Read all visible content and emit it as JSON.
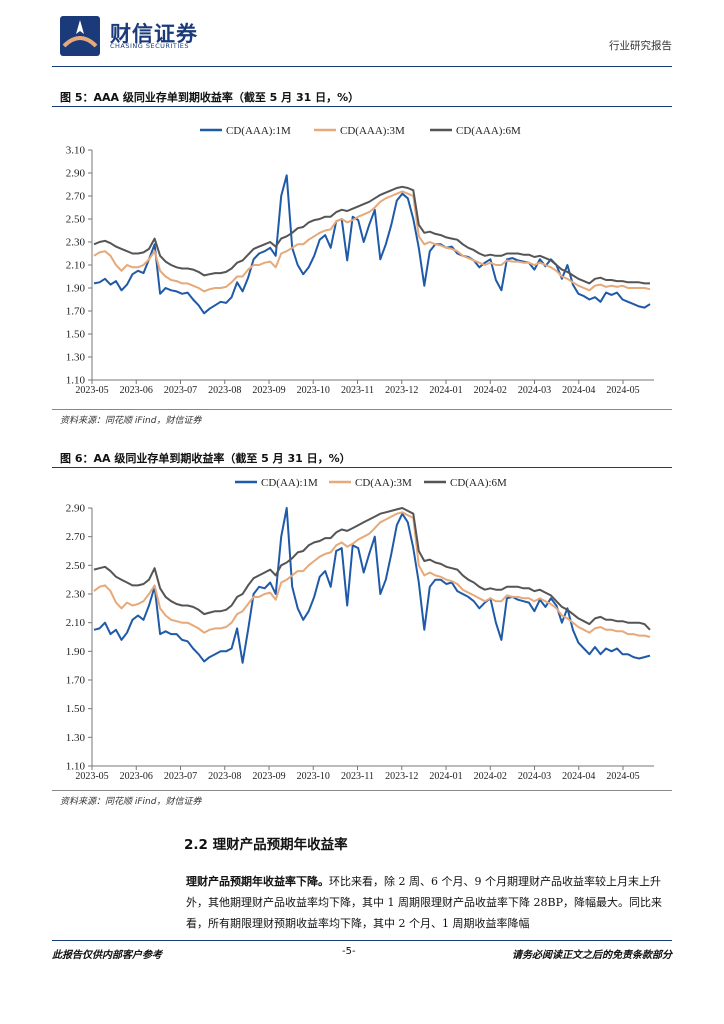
{
  "header": {
    "brand_name": "财信证券",
    "brand_en": "CHASING SECURITIES",
    "report_type": "行业研究报告"
  },
  "figure5": {
    "title": "图 5：AAA 级同业存单到期收益率（截至 5 月 31 日，%）",
    "source": "资料来源：同花顺 iFind，财信证券"
  },
  "figure6": {
    "title": "图 6：AA 级同业存单到期收益率（截至 5 月 31 日，%）",
    "source": "资料来源：同花顺 iFind，财信证券"
  },
  "section": {
    "title": "2.2 理财产品预期年收益率",
    "para_lead": "理财产品预期年收益率下降。",
    "para_body": "环比来看，除 2 周、6 个月、9 个月期理财产品收益率较上月末上升外，其他期理财产品收益率均下降，其中 1 周期限理财产品收益率下降 28BP，降幅最大。同比来看，所有期限理财预期收益率均下降，其中 2 个月、1 周期收益率降幅"
  },
  "footer": {
    "left": "此报告仅供内部客户参考",
    "page": "-5-",
    "right": "请务必阅读正文之后的免责条款部分"
  },
  "colors": {
    "m1": "#1f5aa8",
    "m3": "#e6a97a",
    "m6": "#555555",
    "brand": "#1a3a7a"
  },
  "chart_data": [
    {
      "type": "line",
      "title": "AAA 级同业存单到期收益率（截至 5 月 31 日，%）",
      "x_labels": [
        "2023-05",
        "2023-06",
        "2023-07",
        "2023-08",
        "2023-09",
        "2023-10",
        "2023-11",
        "2023-12",
        "2024-01",
        "2024-02",
        "2024-03",
        "2024-04",
        "2024-05"
      ],
      "yticks": [
        "1.10",
        "1.30",
        "1.50",
        "1.70",
        "1.90",
        "2.10",
        "2.30",
        "2.50",
        "2.70",
        "2.90",
        "3.10"
      ],
      "ylim": [
        1.1,
        3.1
      ],
      "series": [
        {
          "name": "CD(AAA):1M",
          "color": "#1f5aa8",
          "values": [
            1.94,
            1.95,
            1.98,
            1.93,
            1.96,
            1.88,
            1.93,
            2.02,
            2.05,
            2.03,
            2.15,
            2.28,
            1.85,
            1.9,
            1.88,
            1.87,
            1.85,
            1.86,
            1.8,
            1.75,
            1.68,
            1.72,
            1.75,
            1.78,
            1.77,
            1.82,
            1.95,
            1.87,
            1.99,
            2.15,
            2.2,
            2.22,
            2.25,
            2.18,
            2.7,
            2.88,
            2.25,
            2.1,
            2.02,
            2.08,
            2.18,
            2.32,
            2.36,
            2.25,
            2.48,
            2.5,
            2.14,
            2.52,
            2.49,
            2.3,
            2.45,
            2.58,
            2.15,
            2.28,
            2.45,
            2.66,
            2.72,
            2.68,
            2.5,
            2.25,
            1.92,
            2.22,
            2.28,
            2.28,
            2.25,
            2.26,
            2.2,
            2.18,
            2.17,
            2.14,
            2.08,
            2.12,
            2.15,
            1.97,
            1.88,
            2.15,
            2.16,
            2.14,
            2.13,
            2.12,
            2.06,
            2.15,
            2.09,
            2.15,
            2.1,
            1.98,
            2.1,
            1.93,
            1.85,
            1.83,
            1.8,
            1.82,
            1.78,
            1.86,
            1.84,
            1.86,
            1.8,
            1.78,
            1.76,
            1.74,
            1.73,
            1.76
          ]
        },
        {
          "name": "CD(AAA):3M",
          "color": "#e6a97a",
          "values": [
            2.18,
            2.21,
            2.22,
            2.18,
            2.1,
            2.05,
            2.1,
            2.08,
            2.08,
            2.1,
            2.15,
            2.22,
            2.05,
            2.0,
            1.97,
            1.96,
            1.94,
            1.94,
            1.92,
            1.9,
            1.87,
            1.89,
            1.9,
            1.9,
            1.91,
            1.95,
            2.0,
            2.0,
            2.06,
            2.1,
            2.1,
            2.12,
            2.13,
            2.08,
            2.2,
            2.22,
            2.25,
            2.28,
            2.28,
            2.32,
            2.35,
            2.38,
            2.4,
            2.41,
            2.48,
            2.5,
            2.47,
            2.49,
            2.52,
            2.54,
            2.56,
            2.6,
            2.65,
            2.68,
            2.7,
            2.72,
            2.74,
            2.72,
            2.7,
            2.35,
            2.28,
            2.3,
            2.28,
            2.27,
            2.25,
            2.24,
            2.22,
            2.18,
            2.16,
            2.14,
            2.12,
            2.1,
            2.12,
            2.1,
            2.1,
            2.14,
            2.13,
            2.13,
            2.12,
            2.12,
            2.1,
            2.12,
            2.1,
            2.08,
            2.05,
            2.0,
            1.98,
            1.95,
            1.92,
            1.9,
            1.88,
            1.92,
            1.93,
            1.91,
            1.92,
            1.91,
            1.92,
            1.9,
            1.9,
            1.9,
            1.9,
            1.89
          ]
        },
        {
          "name": "CD(AAA):6M",
          "color": "#555555",
          "values": [
            2.28,
            2.3,
            2.31,
            2.29,
            2.26,
            2.24,
            2.22,
            2.2,
            2.2,
            2.21,
            2.24,
            2.33,
            2.18,
            2.13,
            2.1,
            2.08,
            2.07,
            2.07,
            2.06,
            2.04,
            2.01,
            2.02,
            2.03,
            2.03,
            2.04,
            2.07,
            2.12,
            2.14,
            2.19,
            2.24,
            2.26,
            2.28,
            2.3,
            2.26,
            2.33,
            2.35,
            2.38,
            2.42,
            2.43,
            2.47,
            2.49,
            2.5,
            2.52,
            2.52,
            2.56,
            2.58,
            2.57,
            2.59,
            2.61,
            2.63,
            2.65,
            2.68,
            2.71,
            2.73,
            2.75,
            2.77,
            2.78,
            2.77,
            2.75,
            2.45,
            2.38,
            2.39,
            2.37,
            2.36,
            2.34,
            2.33,
            2.32,
            2.28,
            2.25,
            2.23,
            2.2,
            2.18,
            2.19,
            2.18,
            2.18,
            2.2,
            2.2,
            2.2,
            2.19,
            2.19,
            2.17,
            2.18,
            2.16,
            2.14,
            2.1,
            2.06,
            2.04,
            2.01,
            1.98,
            1.96,
            1.94,
            1.98,
            1.99,
            1.97,
            1.97,
            1.96,
            1.96,
            1.95,
            1.95,
            1.95,
            1.94,
            1.94
          ]
        }
      ]
    },
    {
      "type": "line",
      "title": "AA 级同业存单到期收益率（截至 5 月 31 日，%）",
      "x_labels": [
        "2023-05",
        "2023-06",
        "2023-07",
        "2023-08",
        "2023-09",
        "2023-10",
        "2023-11",
        "2023-12",
        "2024-01",
        "2024-02",
        "2024-03",
        "2024-04",
        "2024-05"
      ],
      "yticks": [
        "1.10",
        "1.30",
        "1.50",
        "1.70",
        "1.90",
        "2.10",
        "2.30",
        "2.50",
        "2.70",
        "2.90"
      ],
      "ylim": [
        1.1,
        2.9
      ],
      "series": [
        {
          "name": "CD(AA):1M",
          "color": "#1f5aa8",
          "values": [
            2.05,
            2.06,
            2.1,
            2.02,
            2.05,
            1.98,
            2.03,
            2.12,
            2.15,
            2.12,
            2.22,
            2.35,
            2.02,
            2.04,
            2.02,
            2.02,
            1.98,
            1.97,
            1.92,
            1.88,
            1.83,
            1.86,
            1.88,
            1.9,
            1.9,
            1.92,
            2.06,
            1.82,
            2.05,
            2.3,
            2.35,
            2.34,
            2.38,
            2.3,
            2.7,
            2.9,
            2.35,
            2.2,
            2.12,
            2.18,
            2.28,
            2.42,
            2.46,
            2.35,
            2.6,
            2.62,
            2.22,
            2.64,
            2.62,
            2.45,
            2.58,
            2.7,
            2.3,
            2.4,
            2.58,
            2.78,
            2.86,
            2.8,
            2.62,
            2.38,
            2.05,
            2.35,
            2.4,
            2.4,
            2.37,
            2.38,
            2.32,
            2.3,
            2.28,
            2.25,
            2.2,
            2.24,
            2.27,
            2.1,
            1.98,
            2.27,
            2.28,
            2.26,
            2.25,
            2.24,
            2.18,
            2.26,
            2.21,
            2.27,
            2.22,
            2.1,
            2.2,
            2.05,
            1.96,
            1.92,
            1.88,
            1.93,
            1.88,
            1.92,
            1.9,
            1.92,
            1.88,
            1.88,
            1.86,
            1.85,
            1.86,
            1.87
          ]
        },
        {
          "name": "CD(AA):3M",
          "color": "#e6a97a",
          "values": [
            2.32,
            2.35,
            2.36,
            2.32,
            2.24,
            2.2,
            2.24,
            2.22,
            2.23,
            2.25,
            2.3,
            2.36,
            2.2,
            2.15,
            2.12,
            2.11,
            2.1,
            2.1,
            2.08,
            2.06,
            2.03,
            2.05,
            2.06,
            2.06,
            2.07,
            2.1,
            2.16,
            2.18,
            2.23,
            2.28,
            2.28,
            2.3,
            2.31,
            2.26,
            2.38,
            2.4,
            2.43,
            2.46,
            2.46,
            2.5,
            2.53,
            2.56,
            2.58,
            2.59,
            2.64,
            2.66,
            2.63,
            2.65,
            2.68,
            2.7,
            2.72,
            2.76,
            2.8,
            2.82,
            2.84,
            2.86,
            2.87,
            2.85,
            2.83,
            2.5,
            2.43,
            2.45,
            2.43,
            2.42,
            2.4,
            2.39,
            2.37,
            2.33,
            2.31,
            2.29,
            2.27,
            2.25,
            2.27,
            2.25,
            2.25,
            2.29,
            2.28,
            2.28,
            2.27,
            2.27,
            2.25,
            2.27,
            2.25,
            2.23,
            2.2,
            2.15,
            2.13,
            2.1,
            2.07,
            2.05,
            2.03,
            2.06,
            2.07,
            2.05,
            2.05,
            2.04,
            2.04,
            2.02,
            2.02,
            2.01,
            2.01,
            2.0
          ]
        },
        {
          "name": "CD(AA):6M",
          "color": "#555555",
          "values": [
            2.47,
            2.48,
            2.49,
            2.46,
            2.42,
            2.4,
            2.38,
            2.36,
            2.36,
            2.37,
            2.4,
            2.48,
            2.34,
            2.28,
            2.25,
            2.23,
            2.22,
            2.22,
            2.21,
            2.19,
            2.16,
            2.17,
            2.18,
            2.18,
            2.19,
            2.22,
            2.28,
            2.3,
            2.36,
            2.41,
            2.43,
            2.45,
            2.47,
            2.43,
            2.5,
            2.52,
            2.55,
            2.59,
            2.6,
            2.64,
            2.66,
            2.67,
            2.69,
            2.69,
            2.73,
            2.75,
            2.74,
            2.76,
            2.78,
            2.8,
            2.82,
            2.84,
            2.86,
            2.87,
            2.88,
            2.89,
            2.9,
            2.88,
            2.86,
            2.6,
            2.53,
            2.54,
            2.52,
            2.51,
            2.49,
            2.48,
            2.47,
            2.43,
            2.4,
            2.38,
            2.35,
            2.33,
            2.34,
            2.33,
            2.33,
            2.35,
            2.35,
            2.35,
            2.34,
            2.34,
            2.32,
            2.33,
            2.31,
            2.29,
            2.25,
            2.21,
            2.19,
            2.16,
            2.13,
            2.11,
            2.09,
            2.13,
            2.14,
            2.12,
            2.12,
            2.11,
            2.11,
            2.1,
            2.1,
            2.1,
            2.09,
            2.05
          ]
        }
      ]
    }
  ]
}
